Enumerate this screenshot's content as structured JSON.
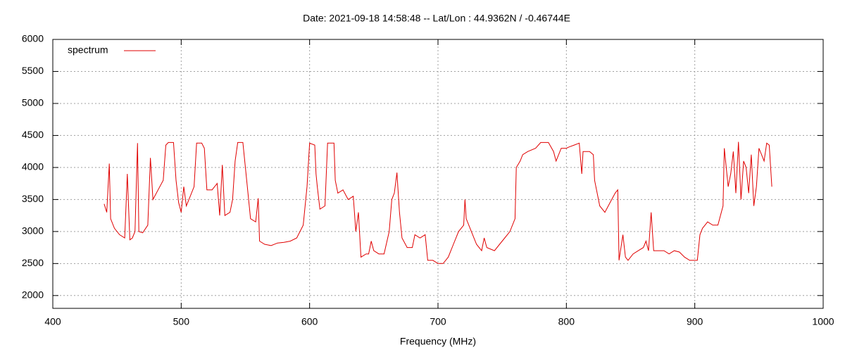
{
  "chart_data": {
    "type": "line",
    "title": "Date: 2021-09-18 14:58:48  --  Lat/Lon : 44.9362N / -0.46744E",
    "x_label": "Frequency (MHz)",
    "xlim": [
      400,
      1000
    ],
    "xticks": [
      400,
      500,
      600,
      700,
      800,
      900,
      1000
    ],
    "ylim": [
      1800,
      6000
    ],
    "yticks": [
      2000,
      2500,
      3000,
      3500,
      4000,
      4500,
      5000,
      5500,
      6000
    ],
    "grid": true,
    "legend": "top-left",
    "series": [
      {
        "name": "spectrum",
        "color": "#e00000",
        "x": [
          440,
          442,
          444,
          445,
          448,
          452,
          456,
          458,
          460,
          462,
          464,
          466,
          467,
          470,
          474,
          476,
          478,
          482,
          486,
          488,
          490,
          494,
          496,
          498,
          500,
          502,
          504,
          506,
          510,
          512,
          516,
          518,
          520,
          524,
          526,
          528,
          530,
          532,
          534,
          538,
          540,
          542,
          544,
          548,
          550,
          554,
          558,
          560,
          561,
          565,
          570,
          575,
          580,
          585,
          590,
          595,
          598,
          600,
          604,
          605,
          606,
          608,
          612,
          614,
          619,
          620,
          622,
          626,
          630,
          634,
          636,
          638,
          640,
          644,
          646,
          648,
          650,
          654,
          658,
          662,
          664,
          666,
          668,
          670,
          672,
          676,
          680,
          682,
          686,
          690,
          692,
          696,
          700,
          704,
          708,
          712,
          716,
          720,
          721,
          722,
          726,
          730,
          734,
          736,
          738,
          744,
          748,
          752,
          756,
          760,
          761,
          764,
          766,
          770,
          776,
          780,
          786,
          790,
          792,
          796,
          800,
          802,
          806,
          810,
          812,
          813,
          818,
          821,
          822,
          826,
          830,
          834,
          838,
          840,
          841,
          844,
          846,
          848,
          852,
          856,
          860,
          862,
          864,
          866,
          868,
          872,
          876,
          880,
          884,
          888,
          892,
          896,
          900,
          902,
          904,
          906,
          910,
          914,
          918,
          922,
          923,
          926,
          928,
          930,
          932,
          934,
          936,
          938,
          940,
          942,
          944,
          946,
          948,
          950,
          952,
          954,
          956,
          958,
          960
        ],
        "values": [
          3430,
          3300,
          4060,
          3200,
          3050,
          2950,
          2900,
          3900,
          2870,
          2900,
          3000,
          4380,
          3000,
          2980,
          3100,
          4150,
          3500,
          3650,
          3800,
          4350,
          4390,
          4390,
          3800,
          3450,
          3300,
          3700,
          3400,
          3500,
          3700,
          4380,
          4380,
          4300,
          3650,
          3650,
          3700,
          3750,
          3250,
          4040,
          3250,
          3300,
          3500,
          4100,
          4390,
          4390,
          4000,
          3200,
          3150,
          3520,
          2850,
          2800,
          2780,
          2820,
          2830,
          2850,
          2900,
          3100,
          3700,
          4380,
          4350,
          3900,
          3700,
          3350,
          3400,
          4380,
          4380,
          3800,
          3600,
          3650,
          3500,
          3550,
          3000,
          3300,
          2600,
          2650,
          2650,
          2850,
          2700,
          2650,
          2650,
          3000,
          3500,
          3600,
          3920,
          3300,
          2900,
          2750,
          2750,
          2950,
          2900,
          2950,
          2550,
          2550,
          2500,
          2500,
          2600,
          2800,
          3000,
          3100,
          3500,
          3200,
          3000,
          2800,
          2700,
          2900,
          2750,
          2700,
          2800,
          2900,
          3000,
          3200,
          4000,
          4100,
          4200,
          4250,
          4300,
          4390,
          4390,
          4250,
          4100,
          4300,
          4300,
          4320,
          4350,
          4380,
          3900,
          4250,
          4250,
          4200,
          3800,
          3400,
          3300,
          3450,
          3600,
          3650,
          2550,
          2950,
          2600,
          2550,
          2650,
          2700,
          2750,
          2850,
          2700,
          3300,
          2700,
          2700,
          2700,
          2650,
          2700,
          2680,
          2600,
          2550,
          2550,
          2550,
          2950,
          3050,
          3150,
          3100,
          3100,
          3400,
          4300,
          3700,
          3900,
          4250,
          3600,
          4400,
          3500,
          4100,
          4000,
          3600,
          4200,
          3400,
          3700,
          4300,
          4200,
          4100,
          4380,
          4350,
          3700
        ]
      }
    ]
  }
}
